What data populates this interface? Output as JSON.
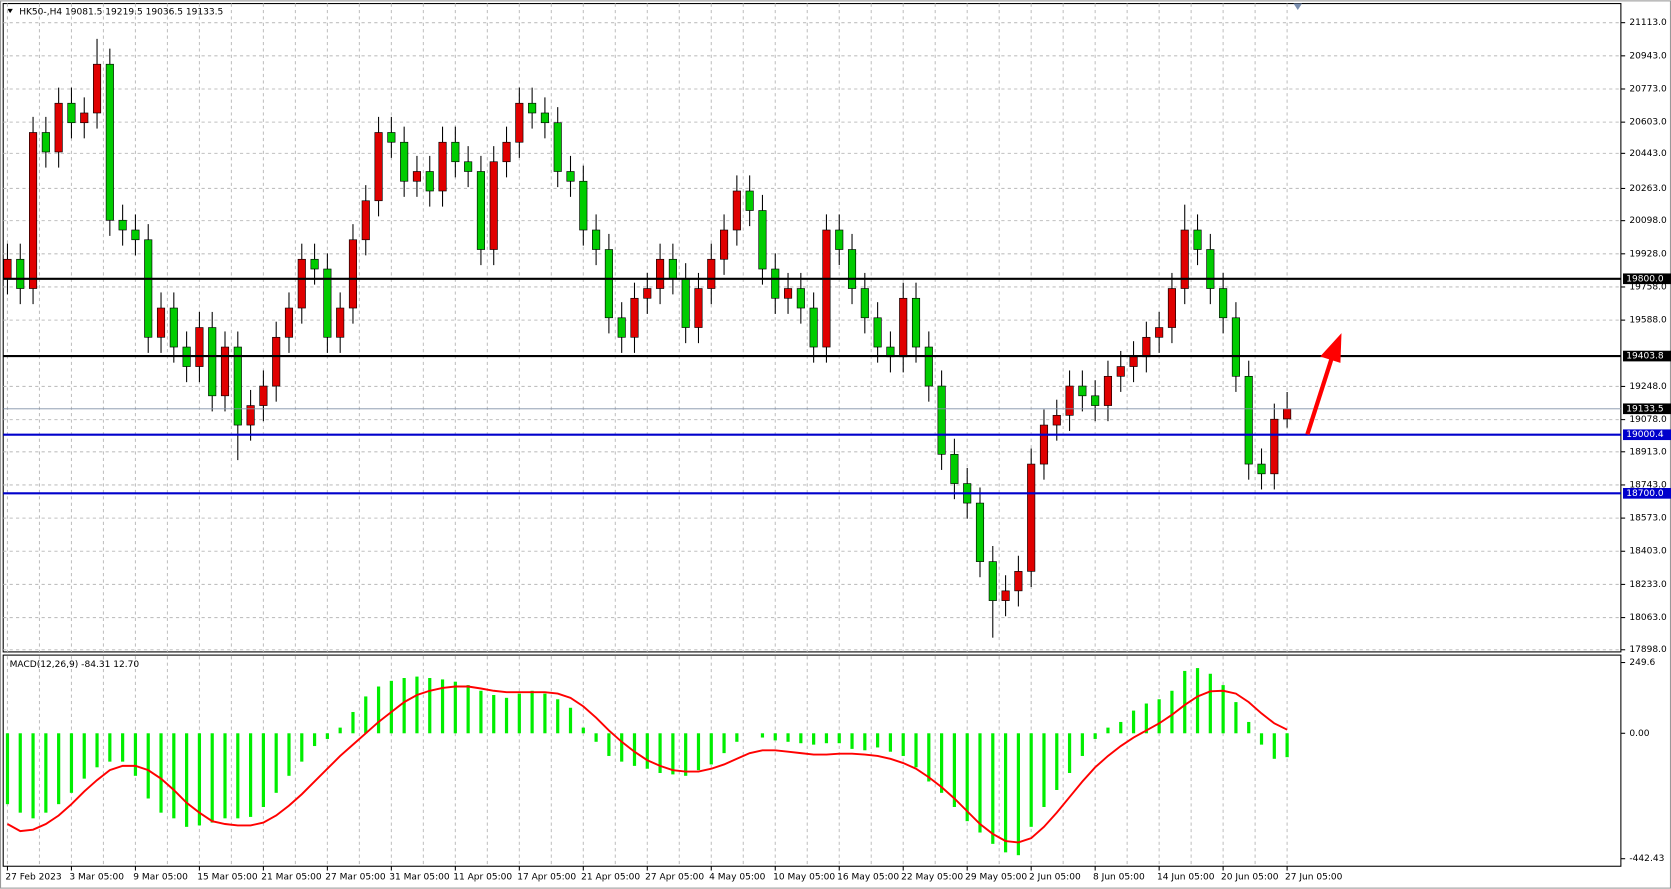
{
  "header": {
    "title": "HK50-,H4  19081.5 19219.5 19036.5 19133.5"
  },
  "chart_data": [
    {
      "type": "candlestick",
      "categories": [
        "27 Feb 2023",
        null,
        null,
        null,
        null,
        "3 Mar 05:00",
        null,
        null,
        null,
        null,
        "9 Mar 05:00",
        null,
        null,
        null,
        null,
        "15 Mar 05:00",
        null,
        null,
        null,
        null,
        "21 Mar 05:00",
        null,
        null,
        null,
        null,
        "27 Mar 05:00",
        null,
        null,
        null,
        null,
        "31 Mar 05:00",
        null,
        null,
        null,
        null,
        "11 Apr 05:00",
        null,
        null,
        null,
        null,
        "17 Apr 05:00",
        null,
        null,
        null,
        null,
        "21 Apr 05:00",
        null,
        null,
        null,
        null,
        "27 Apr 05:00",
        null,
        null,
        null,
        null,
        "4 May 05:00",
        null,
        null,
        null,
        null,
        "10 May 05:00",
        null,
        null,
        null,
        null,
        "16 May 05:00",
        null,
        null,
        null,
        null,
        "22 May 05:00",
        null,
        null,
        null,
        null,
        "29 May 05:00",
        null,
        null,
        null,
        null,
        "2 Jun 05:00",
        null,
        null,
        null,
        null,
        "8 Jun 05:00",
        null,
        null,
        null,
        null,
        "14 Jun 05:00",
        null,
        null,
        null,
        null,
        "20 Jun 05:00",
        null,
        null,
        null,
        null,
        "27 Jun 05:00"
      ],
      "open": [
        19800,
        19900,
        19750,
        20550,
        20450,
        20700,
        20600,
        20650,
        20900,
        20100,
        20050,
        20000,
        19500,
        19650,
        19450,
        19350,
        19550,
        19200,
        19450,
        19050,
        19150,
        19250,
        19500,
        19650,
        19900,
        19850,
        19500,
        19650,
        20000,
        20200,
        20550,
        20500,
        20300,
        20350,
        20250,
        20500,
        20400,
        20350,
        19950,
        20400,
        20500,
        20700,
        20650,
        20600,
        20350,
        20300,
        20050,
        19950,
        19600,
        19500,
        19700,
        19750,
        19900,
        19800,
        19550,
        19750,
        19900,
        20050,
        20250,
        20150,
        19850,
        19700,
        19750,
        19650,
        19450,
        20050,
        19950,
        19750,
        19600,
        19450,
        19400,
        19700,
        19450,
        19250,
        18900,
        18750,
        18650,
        18350,
        18150,
        18200,
        18300,
        18850,
        19050,
        19100,
        19250,
        19200,
        19150,
        19300,
        19350,
        19400,
        19500,
        19550,
        19750,
        20050,
        19950,
        19750,
        19600,
        19300,
        18850,
        18800,
        19081.5
      ],
      "high": [
        19980,
        19980,
        20630,
        20630,
        20780,
        20780,
        20730,
        21030,
        20980,
        20180,
        20130,
        20080,
        19730,
        19730,
        19530,
        19630,
        19630,
        19530,
        19530,
        19230,
        19330,
        19580,
        19730,
        19980,
        19980,
        19930,
        19730,
        20080,
        20280,
        20630,
        20630,
        20580,
        20430,
        20430,
        20580,
        20580,
        20480,
        20430,
        20480,
        20580,
        20780,
        20780,
        20730,
        20680,
        20430,
        20380,
        20130,
        20030,
        19680,
        19780,
        19830,
        19980,
        19980,
        19880,
        19830,
        19980,
        20130,
        20330,
        20330,
        20230,
        19930,
        19830,
        19830,
        19730,
        20130,
        20130,
        20030,
        19830,
        19680,
        19530,
        19780,
        19780,
        19530,
        19330,
        18980,
        18830,
        18730,
        18430,
        18280,
        18380,
        18930,
        19130,
        19180,
        19330,
        19330,
        19280,
        19380,
        19430,
        19480,
        19580,
        19630,
        19830,
        20180,
        20130,
        20030,
        19830,
        19680,
        19380,
        18930,
        19160,
        19219.5
      ],
      "low": [
        19720,
        19670,
        19670,
        20370,
        20370,
        20520,
        20520,
        20570,
        20020,
        19970,
        19920,
        19420,
        19420,
        19370,
        19270,
        19270,
        19120,
        19120,
        18870,
        18970,
        19070,
        19170,
        19420,
        19570,
        19770,
        19420,
        19420,
        19570,
        19920,
        20120,
        20420,
        20220,
        20220,
        20170,
        20170,
        20320,
        20270,
        19870,
        19870,
        20320,
        20420,
        20570,
        20520,
        20270,
        20220,
        19970,
        19870,
        19520,
        19420,
        19420,
        19620,
        19670,
        19720,
        19470,
        19470,
        19670,
        19820,
        19970,
        20070,
        19770,
        19620,
        19620,
        19570,
        19370,
        19370,
        19870,
        19670,
        19520,
        19370,
        19320,
        19320,
        19370,
        19170,
        18820,
        18670,
        18570,
        18270,
        17960,
        18070,
        18120,
        18220,
        18770,
        18970,
        19020,
        19120,
        19070,
        19070,
        19220,
        19270,
        19320,
        19420,
        19470,
        19670,
        19870,
        19670,
        19520,
        19220,
        18770,
        18720,
        18720,
        19036.5
      ],
      "close": [
        19900,
        19750,
        20550,
        20450,
        20700,
        20600,
        20650,
        20900,
        20100,
        20050,
        20000,
        19500,
        19650,
        19450,
        19350,
        19550,
        19200,
        19450,
        19050,
        19150,
        19250,
        19500,
        19650,
        19900,
        19850,
        19500,
        19650,
        20000,
        20200,
        20550,
        20500,
        20300,
        20350,
        20250,
        20500,
        20400,
        20350,
        19950,
        20400,
        20500,
        20700,
        20650,
        20600,
        20350,
        20300,
        20050,
        19950,
        19600,
        19500,
        19700,
        19750,
        19900,
        19800,
        19550,
        19750,
        19900,
        20050,
        20250,
        20150,
        19850,
        19700,
        19750,
        19650,
        19450,
        20050,
        19950,
        19750,
        19600,
        19450,
        19400,
        19700,
        19450,
        19250,
        18900,
        18750,
        18650,
        18350,
        18150,
        18200,
        18300,
        18850,
        19050,
        19100,
        19250,
        19200,
        19150,
        19300,
        19350,
        19400,
        19500,
        19550,
        19750,
        20050,
        19950,
        19750,
        19600,
        19300,
        18850,
        18800,
        19080,
        19133.5
      ],
      "up_color": "#e00000",
      "down_color": "#00cc00",
      "ylim": [
        17887,
        21211
      ],
      "yticks": [
        {
          "value": 21113,
          "label": "21113.0"
        },
        {
          "value": 20943,
          "label": "20943.0"
        },
        {
          "value": 20773,
          "label": "20773.0"
        },
        {
          "value": 20603,
          "label": "20603.0"
        },
        {
          "value": 20443,
          "label": "20443.0"
        },
        {
          "value": 20263,
          "label": "20263.0"
        },
        {
          "value": 20098,
          "label": "20098.0"
        },
        {
          "value": 19928,
          "label": "19928.0"
        },
        {
          "value": 19758,
          "label": "19758.0"
        },
        {
          "value": 19588,
          "label": "19588.0"
        },
        {
          "value": 19248,
          "label": "19248.0"
        },
        {
          "value": 19078,
          "label": "19078.0"
        },
        {
          "value": 18913,
          "label": "18913.0"
        },
        {
          "value": 18743,
          "label": "18743.0"
        },
        {
          "value": 18573,
          "label": "18573.0"
        },
        {
          "value": 18403,
          "label": "18403.0"
        },
        {
          "value": 18233,
          "label": "18233.0"
        },
        {
          "value": 18063,
          "label": "18063.0"
        },
        {
          "value": 17898,
          "label": "17898.0"
        }
      ],
      "grid": true,
      "levels": [
        {
          "value": 19800,
          "label": "19800.0",
          "color": "#000000"
        },
        {
          "value": 19403.8,
          "label": "19403.8",
          "color": "#000000"
        },
        {
          "value": 19000.4,
          "label": "19000.4",
          "color": "#0000cc"
        },
        {
          "value": 18700,
          "label": "18700.0",
          "color": "#0000cc"
        }
      ],
      "current_price": 19133.5
    },
    {
      "type": "macd",
      "title": "MACD(12,26,9) -84.31 12.70",
      "ylim": [
        -469,
        272
      ],
      "yticks": [
        249.6,
        {
          "value": 0,
          "label": "0.00"
        },
        -442.43
      ],
      "series": [
        {
          "color": "#00ee00",
          "values": [
            -250,
            -280,
            -300,
            -280,
            -250,
            -210,
            -160,
            -120,
            -100,
            -100,
            -150,
            -230,
            -280,
            -300,
            -330,
            -325,
            -315,
            -300,
            -300,
            -295,
            -260,
            -210,
            -150,
            -100,
            -45,
            -20,
            20,
            75,
            130,
            165,
            185,
            195,
            200,
            195,
            190,
            182,
            170,
            150,
            135,
            125,
            140,
            150,
            140,
            120,
            90,
            20,
            -30,
            -80,
            -100,
            -115,
            -125,
            -140,
            -145,
            -150,
            -130,
            -110,
            -70,
            -30,
            0,
            -15,
            -25,
            -30,
            -35,
            -40,
            -35,
            -35,
            -55,
            -60,
            -50,
            -65,
            -80,
            -120,
            -170,
            -210,
            -260,
            -310,
            -350,
            -390,
            -420,
            -430,
            -330,
            -260,
            -200,
            -140,
            -80,
            -20,
            20,
            40,
            80,
            105,
            120,
            150,
            220,
            230,
            210,
            170,
            110,
            40,
            -40,
            -90,
            -84.31
          ]
        },
        {
          "color": "#ff0000",
          "values": [
            -320,
            -345,
            -340,
            -320,
            -290,
            -250,
            -205,
            -165,
            -130,
            -115,
            -115,
            -130,
            -160,
            -200,
            -245,
            -280,
            -310,
            -320,
            -325,
            -325,
            -315,
            -290,
            -255,
            -215,
            -170,
            -125,
            -80,
            -40,
            0,
            40,
            75,
            110,
            135,
            150,
            160,
            165,
            165,
            158,
            150,
            145,
            145,
            145,
            145,
            140,
            125,
            95,
            55,
            10,
            -30,
            -65,
            -95,
            -115,
            -130,
            -135,
            -135,
            -125,
            -110,
            -90,
            -70,
            -60,
            -60,
            -65,
            -70,
            -75,
            -75,
            -72,
            -72,
            -75,
            -80,
            -90,
            -105,
            -125,
            -155,
            -190,
            -230,
            -275,
            -320,
            -355,
            -380,
            -385,
            -370,
            -330,
            -280,
            -225,
            -170,
            -120,
            -80,
            -45,
            -15,
            10,
            35,
            65,
            100,
            130,
            148,
            150,
            140,
            110,
            70,
            35,
            12.7
          ]
        }
      ]
    }
  ]
}
